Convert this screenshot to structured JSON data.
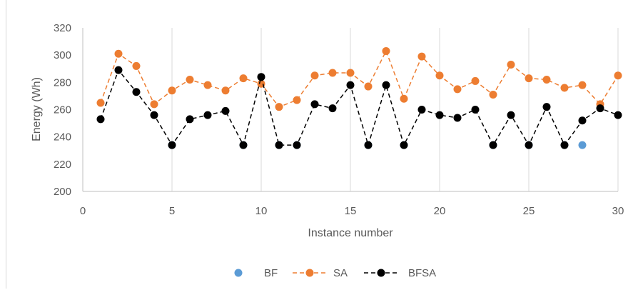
{
  "chart_data": {
    "type": "line",
    "title": "",
    "xlabel": "Instance number",
    "ylabel": "Energy  (Wh)",
    "xlim": [
      0,
      30
    ],
    "ylim": [
      200,
      320
    ],
    "x_ticks": [
      "0",
      "5",
      "10",
      "15",
      "20",
      "25",
      "30"
    ],
    "y_ticks": [
      "200",
      "220",
      "240",
      "260",
      "280",
      "300",
      "320"
    ],
    "grid": "vertical-major",
    "legend_position": "bottom",
    "series": [
      {
        "name": "BF",
        "style": "markers-only",
        "color": "#5B9BD5",
        "points": [
          [
            5,
            234
          ],
          [
            9,
            234
          ],
          [
            11,
            234
          ],
          [
            12,
            234
          ],
          [
            16,
            234
          ],
          [
            18,
            234
          ],
          [
            23,
            234
          ],
          [
            25,
            234
          ],
          [
            27,
            234
          ],
          [
            28,
            234
          ]
        ]
      },
      {
        "name": "SA",
        "style": "dashed-line-markers",
        "color": "#ED7D31",
        "x": [
          1,
          2,
          3,
          4,
          5,
          6,
          7,
          8,
          9,
          10,
          11,
          12,
          13,
          14,
          15,
          16,
          17,
          18,
          19,
          20,
          21,
          22,
          23,
          24,
          25,
          26,
          27,
          28,
          29,
          30
        ],
        "values": [
          265,
          301,
          292,
          264,
          274,
          282,
          278,
          274,
          283,
          279,
          262,
          267,
          285,
          287,
          287,
          277,
          303,
          268,
          299,
          285,
          275,
          281,
          271,
          293,
          283,
          282,
          276,
          278,
          264,
          285
        ]
      },
      {
        "name": "BFSA",
        "style": "dashed-line-markers",
        "color": "#000000",
        "x": [
          1,
          2,
          3,
          4,
          5,
          6,
          7,
          8,
          9,
          10,
          11,
          12,
          13,
          14,
          15,
          16,
          17,
          18,
          19,
          20,
          21,
          22,
          23,
          24,
          25,
          26,
          27,
          28,
          29,
          30
        ],
        "values": [
          253,
          289,
          273,
          256,
          234,
          253,
          256,
          259,
          234,
          284,
          234,
          234,
          264,
          261,
          278,
          234,
          278,
          234,
          260,
          256,
          254,
          260,
          234,
          256,
          234,
          262,
          234,
          252,
          261,
          256
        ]
      }
    ]
  }
}
